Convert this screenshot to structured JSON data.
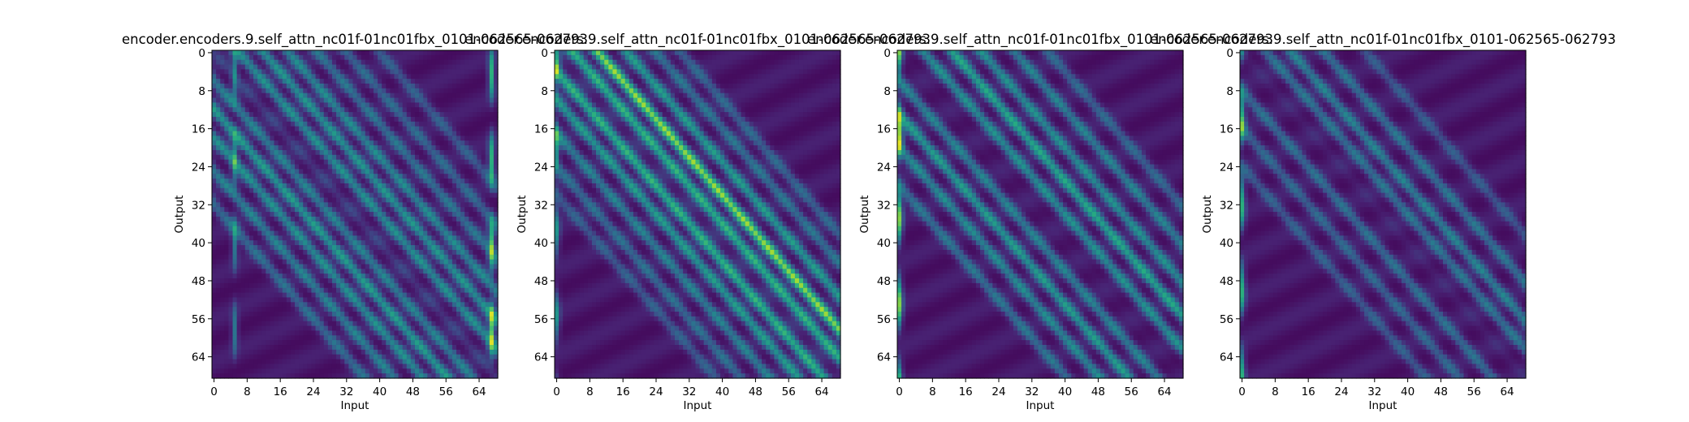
{
  "chart_data": [
    {
      "type": "heatmap",
      "title": "encoder.encoders.9.self_attn_nc01f-01nc01fbx_0101-062565-062793",
      "xlabel": "Input",
      "ylabel": "Output",
      "xlim": [
        0,
        69
      ],
      "ylim": [
        0,
        69
      ],
      "x_ticks": [
        "0",
        "8",
        "16",
        "24",
        "32",
        "40",
        "48",
        "56",
        "64"
      ],
      "y_ticks": [
        "0",
        "8",
        "16",
        "24",
        "32",
        "40",
        "48",
        "56",
        "64"
      ],
      "colormap": "viridis",
      "pattern": {
        "diagonal_offsets": [
          0,
          -6,
          6,
          -12,
          12,
          -18,
          18,
          -25,
          25,
          -32,
          32,
          40
        ],
        "diagonal_strength": [
          0.12,
          0.35,
          0.4,
          0.45,
          0.42,
          0.4,
          0.38,
          0.35,
          0.3,
          0.28,
          0.26,
          0.22
        ],
        "bright_columns": [
          5,
          67
        ],
        "bright_column_strength": [
          0.35,
          0.6
        ]
      }
    },
    {
      "type": "heatmap",
      "title": "encoder.encoders.9.self_attn_nc01f-01nc01fbx_0101-062565-062793",
      "xlabel": "Input",
      "ylabel": "Output",
      "xlim": [
        0,
        69
      ],
      "ylim": [
        0,
        69
      ],
      "x_ticks": [
        "0",
        "8",
        "16",
        "24",
        "32",
        "40",
        "48",
        "56",
        "64"
      ],
      "y_ticks": [
        "0",
        "8",
        "16",
        "24",
        "32",
        "40",
        "48",
        "56",
        "64"
      ],
      "colormap": "viridis",
      "pattern": {
        "diagonal_offsets": [
          0,
          -4,
          4,
          10,
          -10,
          17,
          -17,
          24,
          -24,
          30,
          -30
        ],
        "diagonal_strength": [
          0.05,
          0.55,
          0.55,
          0.75,
          0.45,
          0.45,
          0.35,
          0.3,
          0.28,
          0.25,
          0.22
        ],
        "bright_columns": [
          0
        ],
        "bright_column_strength": [
          0.4
        ]
      }
    },
    {
      "type": "heatmap",
      "title": "encoder.encoders.9.self_attn_nc01f-01nc01fbx_0101-062565-062793",
      "xlabel": "Input",
      "ylabel": "Output",
      "xlim": [
        0,
        69
      ],
      "ylim": [
        0,
        69
      ],
      "x_ticks": [
        "0",
        "8",
        "16",
        "24",
        "32",
        "40",
        "48",
        "56",
        "64"
      ],
      "y_ticks": [
        "0",
        "8",
        "16",
        "24",
        "32",
        "40",
        "48",
        "56",
        "64"
      ],
      "colormap": "viridis",
      "pattern": {
        "diagonal_offsets": [
          0,
          -6,
          6,
          -13,
          13,
          -20,
          20,
          -28,
          28,
          36
        ],
        "diagonal_strength": [
          0.02,
          0.35,
          0.4,
          0.45,
          0.5,
          0.38,
          0.4,
          0.3,
          0.35,
          0.25
        ],
        "bright_columns": [
          0
        ],
        "bright_column_strength": [
          0.7
        ]
      }
    },
    {
      "type": "heatmap",
      "title": "encoder.encoders.9.self_attn_nc01f-01nc01fbx_0101-062565-062793",
      "xlabel": "Input",
      "ylabel": "Output",
      "xlim": [
        0,
        69
      ],
      "ylim": [
        0,
        69
      ],
      "x_ticks": [
        "0",
        "8",
        "16",
        "24",
        "32",
        "40",
        "48",
        "56",
        "64"
      ],
      "y_ticks": [
        "0",
        "8",
        "16",
        "24",
        "32",
        "40",
        "48",
        "56",
        "64"
      ],
      "colormap": "viridis",
      "pattern": {
        "diagonal_offsets": [
          0,
          6,
          12,
          20,
          -8,
          -16,
          -24,
          30
        ],
        "diagonal_strength": [
          0.05,
          0.3,
          0.35,
          0.3,
          0.28,
          0.25,
          0.22,
          0.2
        ],
        "bright_columns": [
          0
        ],
        "bright_column_strength": [
          0.55
        ]
      }
    }
  ]
}
